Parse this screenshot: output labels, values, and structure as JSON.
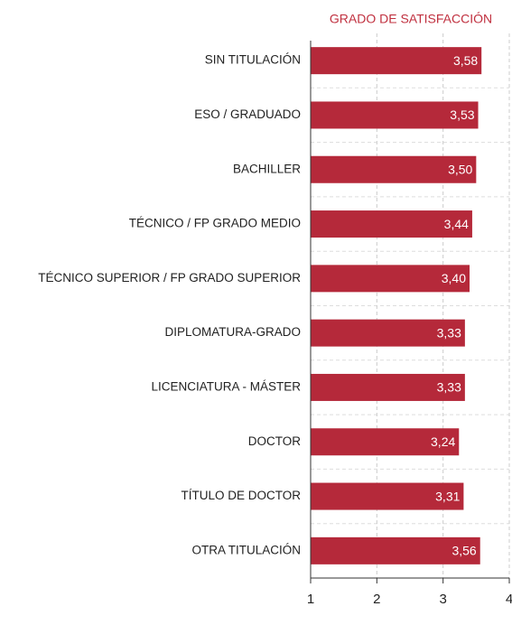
{
  "chart_data": {
    "type": "bar",
    "orientation": "horizontal",
    "title": "GRADO DE SATISFACCIÓN",
    "categories": [
      "SIN TITULACIÓN",
      "ESO / GRADUADO",
      "BACHILLER",
      "TÉCNICO / FP GRADO MEDIO",
      "TÉCNICO SUPERIOR / FP GRADO SUPERIOR",
      "DIPLOMATURA-GRADO",
      "LICENCIATURA - MÁSTER",
      "DOCTOR",
      "TÍTULO DE DOCTOR",
      "OTRA TITULACIÓN"
    ],
    "values": [
      3.58,
      3.53,
      3.5,
      3.44,
      3.4,
      3.33,
      3.33,
      3.24,
      3.31,
      3.56
    ],
    "value_labels": [
      "3,58",
      "3,53",
      "3,50",
      "3,44",
      "3,40",
      "3,33",
      "3,33",
      "3,24",
      "3,31",
      "3,56"
    ],
    "color": "#b5293a",
    "xlim": [
      1,
      4
    ],
    "xticks": [
      1,
      2,
      3,
      4
    ],
    "grid": true
  }
}
